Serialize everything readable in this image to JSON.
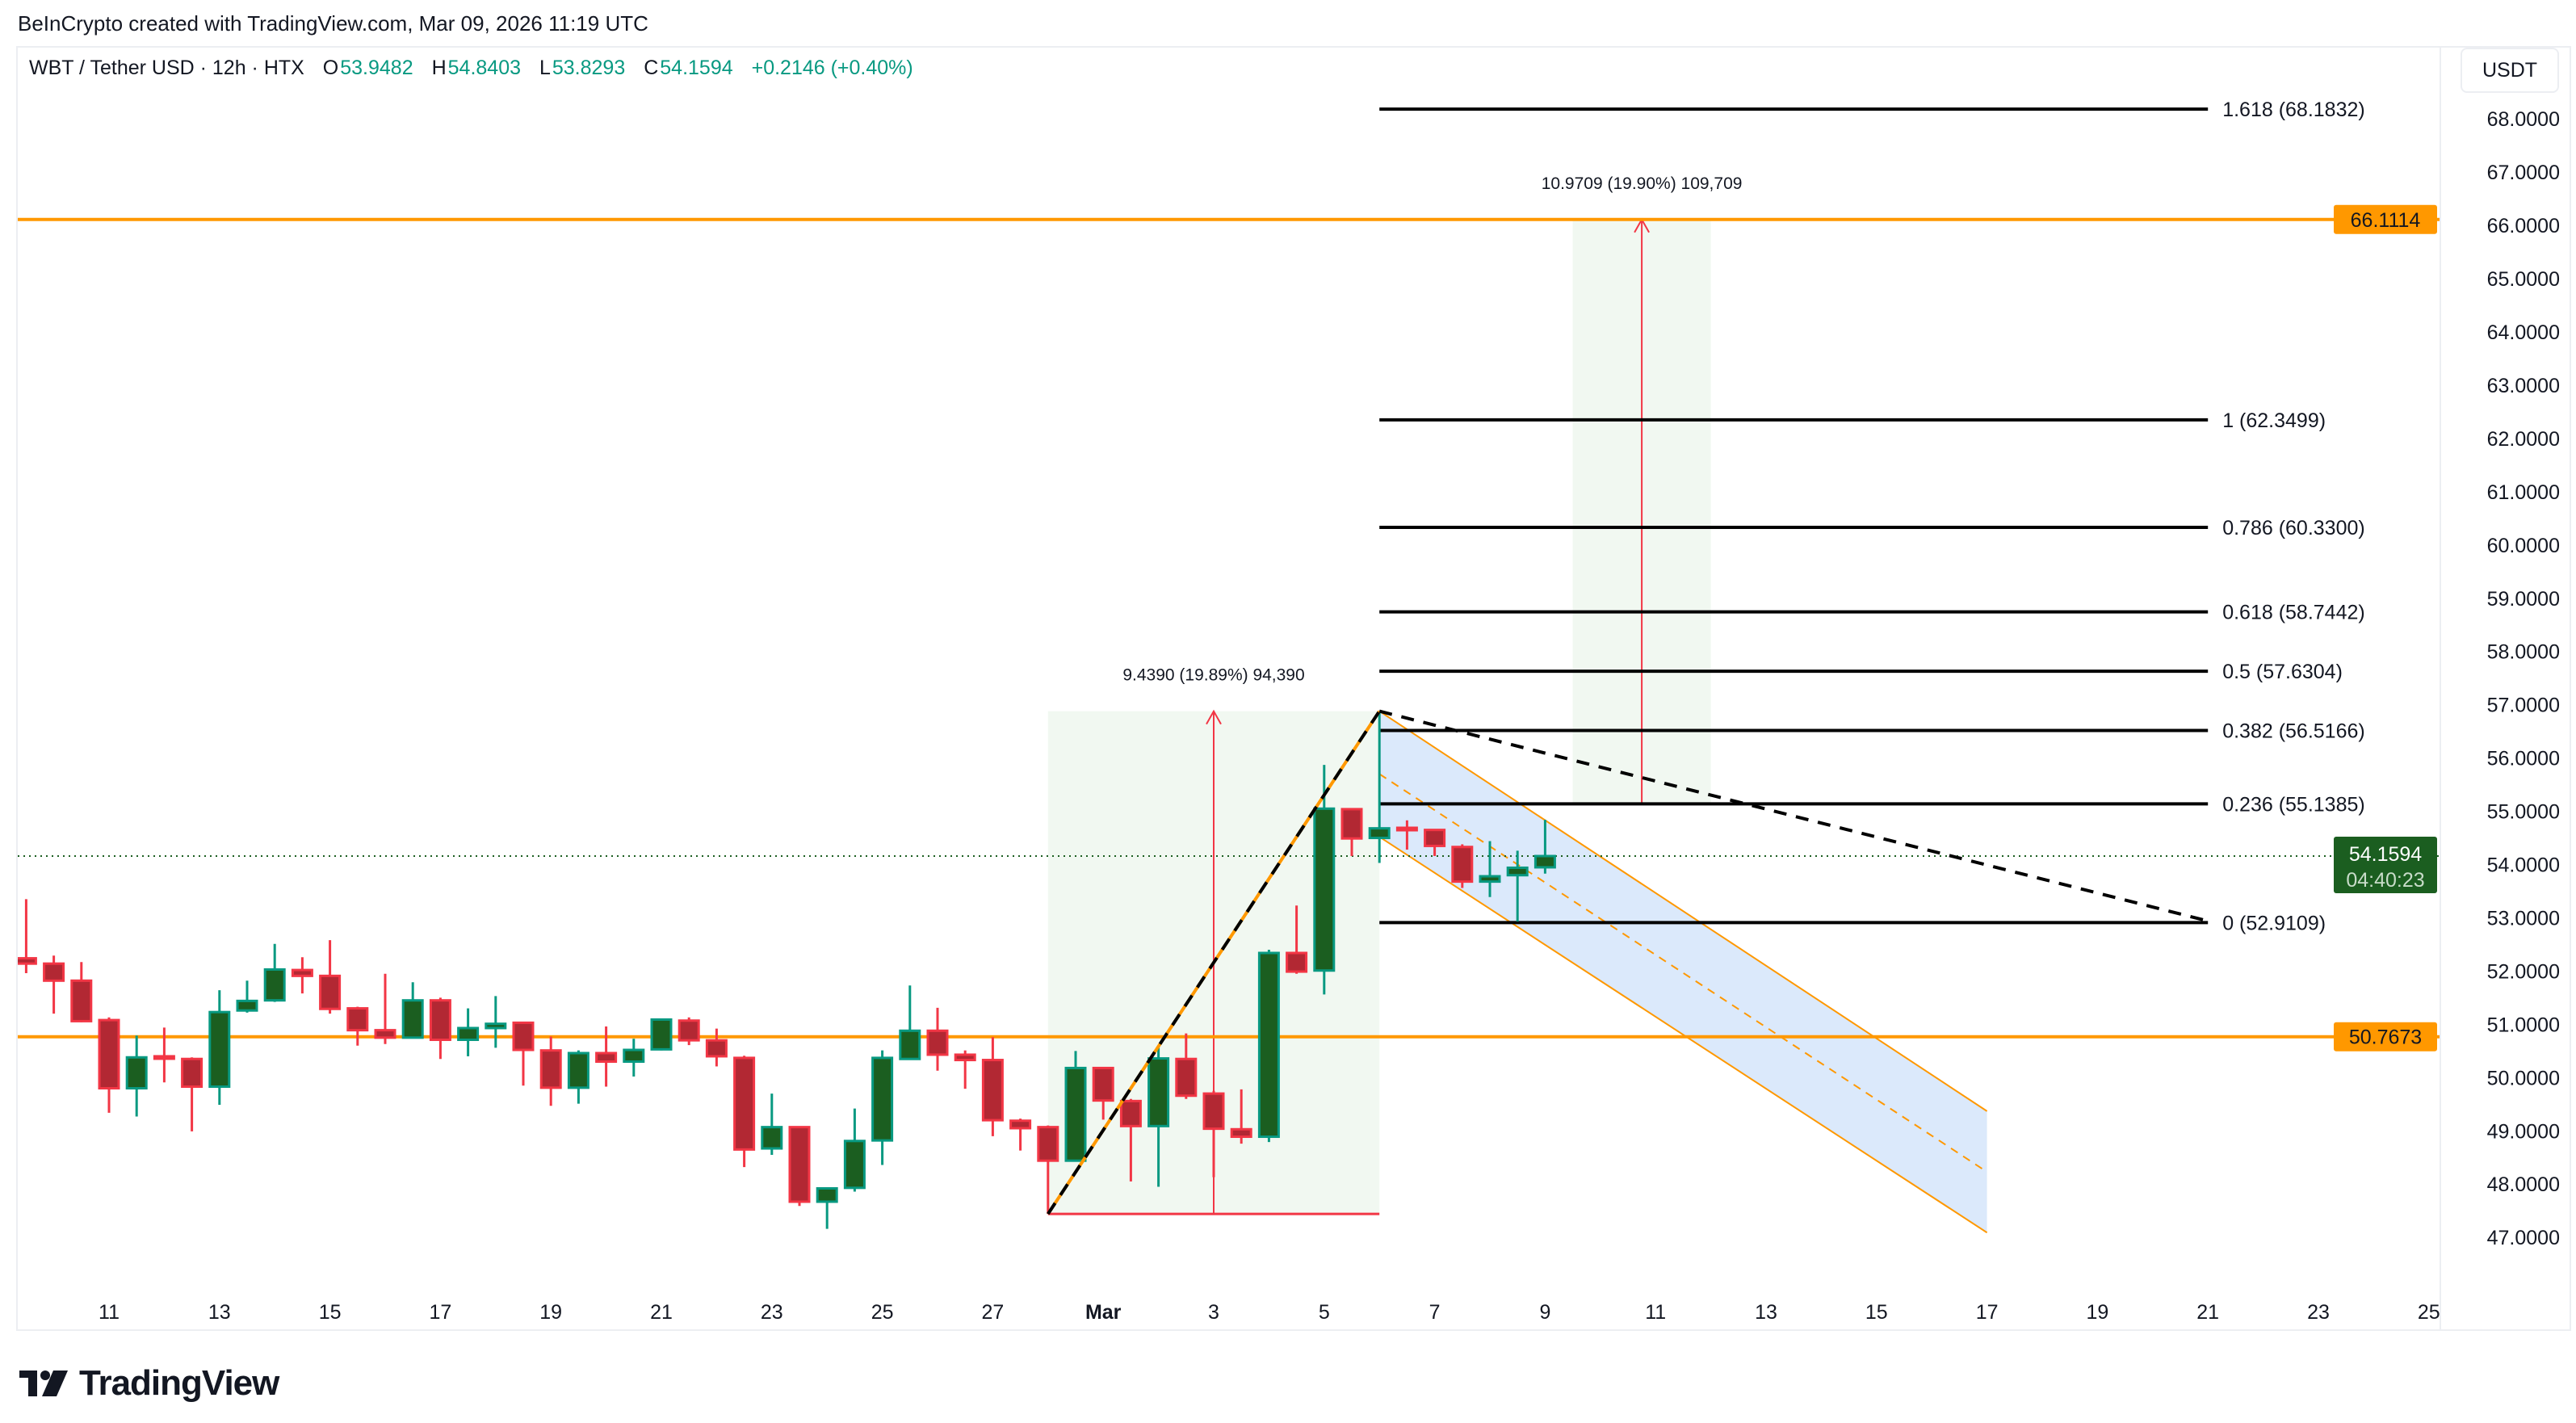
{
  "attribution": "BeInCrypto created with TradingView.com, Mar 09, 2026 11:19 UTC",
  "legend": {
    "symbol": "WBT / Tether USD · 12h · HTX",
    "o_label": "O",
    "o": "53.9482",
    "h_label": "H",
    "h": "54.8403",
    "l_label": "L",
    "l": "53.8293",
    "c_label": "C",
    "c": "54.1594",
    "change": "+0.2146 (+0.40%)"
  },
  "currency_button": "USDT",
  "logo": {
    "text": "TradingView",
    "icon": "tradingview-logo-icon"
  },
  "colors": {
    "up_body": "#1b5e20",
    "up_border": "#089981",
    "down_body": "#b22833",
    "down_border": "#f23645",
    "level": "#ff9800",
    "channel_fill": "#dbe9fb",
    "measure_fill": "#f1f8f1",
    "price_tag": "#1b5e20"
  },
  "chart_data": {
    "type": "candlestick",
    "interval": "12h",
    "grid": false,
    "y_ticks": [
      "47.0000",
      "48.0000",
      "49.0000",
      "50.0000",
      "51.0000",
      "52.0000",
      "53.0000",
      "54.0000",
      "55.0000",
      "56.0000",
      "57.0000",
      "58.0000",
      "59.0000",
      "60.0000",
      "61.0000",
      "62.0000",
      "63.0000",
      "64.0000",
      "65.0000",
      "66.0000",
      "67.0000",
      "68.0000"
    ],
    "ylim": [
      46.5,
      68.5
    ],
    "x_ticks": [
      {
        "label": "11",
        "date": "2026-02-11"
      },
      {
        "label": "13",
        "date": "2026-02-13"
      },
      {
        "label": "15",
        "date": "2026-02-15"
      },
      {
        "label": "17",
        "date": "2026-02-17"
      },
      {
        "label": "19",
        "date": "2026-02-19"
      },
      {
        "label": "21",
        "date": "2026-02-21"
      },
      {
        "label": "23",
        "date": "2026-02-23"
      },
      {
        "label": "25",
        "date": "2026-02-25"
      },
      {
        "label": "27",
        "date": "2026-02-27"
      },
      {
        "label": "Mar",
        "date": "2026-03-01"
      },
      {
        "label": "3",
        "date": "2026-03-03"
      },
      {
        "label": "5",
        "date": "2026-03-05"
      },
      {
        "label": "7",
        "date": "2026-03-07"
      },
      {
        "label": "9",
        "date": "2026-03-09"
      },
      {
        "label": "11",
        "date": "2026-03-11"
      },
      {
        "label": "13",
        "date": "2026-03-13"
      },
      {
        "label": "15",
        "date": "2026-03-15"
      },
      {
        "label": "17",
        "date": "2026-03-17"
      },
      {
        "label": "19",
        "date": "2026-03-19"
      },
      {
        "label": "21",
        "date": "2026-03-21"
      },
      {
        "label": "23",
        "date": "2026-03-23"
      },
      {
        "label": "25",
        "date": "2026-03-25"
      }
    ],
    "candles_columns": [
      "time",
      "open",
      "high",
      "low",
      "close"
    ],
    "candles": [
      [
        "2026-02-09T12:00",
        52.24,
        53.35,
        51.96,
        52.14
      ],
      [
        "2026-02-10T00:00",
        52.14,
        52.29,
        51.2,
        51.82
      ],
      [
        "2026-02-10T12:00",
        51.82,
        52.17,
        51.04,
        51.06
      ],
      [
        "2026-02-11T00:00",
        51.08,
        51.13,
        49.34,
        49.8
      ],
      [
        "2026-02-11T12:00",
        49.8,
        50.79,
        49.27,
        50.38
      ],
      [
        "2026-02-12T00:00",
        50.4,
        50.94,
        49.91,
        50.38
      ],
      [
        "2026-02-12T12:00",
        50.35,
        50.38,
        48.99,
        49.83
      ],
      [
        "2026-02-13T00:00",
        49.83,
        51.64,
        49.49,
        51.23
      ],
      [
        "2026-02-13T12:00",
        51.26,
        51.82,
        51.22,
        51.44
      ],
      [
        "2026-02-14T00:00",
        51.45,
        52.51,
        51.42,
        52.03
      ],
      [
        "2026-02-14T12:00",
        52.02,
        52.26,
        51.58,
        51.91
      ],
      [
        "2026-02-15T00:00",
        51.91,
        52.58,
        51.2,
        51.29
      ],
      [
        "2026-02-15T12:00",
        51.3,
        51.33,
        50.6,
        50.89
      ],
      [
        "2026-02-16T00:00",
        50.89,
        51.95,
        50.63,
        50.75
      ],
      [
        "2026-02-16T12:00",
        50.75,
        51.79,
        50.75,
        51.45
      ],
      [
        "2026-02-17T00:00",
        51.45,
        51.5,
        50.35,
        50.71
      ],
      [
        "2026-02-17T12:00",
        50.71,
        51.3,
        50.4,
        50.93
      ],
      [
        "2026-02-18T00:00",
        50.93,
        51.53,
        50.56,
        51.01
      ],
      [
        "2026-02-18T12:00",
        51.03,
        51.03,
        49.85,
        50.52
      ],
      [
        "2026-02-19T00:00",
        50.51,
        50.77,
        49.47,
        49.81
      ],
      [
        "2026-02-19T12:00",
        49.81,
        50.51,
        49.51,
        50.46
      ],
      [
        "2026-02-20T00:00",
        50.46,
        50.96,
        49.83,
        50.3
      ],
      [
        "2026-02-20T12:00",
        50.3,
        50.73,
        50.02,
        50.52
      ],
      [
        "2026-02-21T00:00",
        50.53,
        51.11,
        50.51,
        51.09
      ],
      [
        "2026-02-21T12:00",
        51.07,
        51.13,
        50.61,
        50.7
      ],
      [
        "2026-02-22T00:00",
        50.7,
        50.92,
        50.21,
        50.4
      ],
      [
        "2026-02-22T12:00",
        50.37,
        50.41,
        48.32,
        48.65
      ],
      [
        "2026-02-23T00:00",
        48.67,
        49.7,
        48.55,
        49.07
      ],
      [
        "2026-02-23T12:00",
        49.07,
        49.07,
        47.59,
        47.67
      ],
      [
        "2026-02-24T00:00",
        47.67,
        47.94,
        47.16,
        47.92
      ],
      [
        "2026-02-24T12:00",
        47.93,
        49.42,
        47.86,
        48.81
      ],
      [
        "2026-02-25T00:00",
        48.82,
        50.51,
        48.36,
        50.37
      ],
      [
        "2026-02-25T12:00",
        50.35,
        51.73,
        50.34,
        50.88
      ],
      [
        "2026-02-26T00:00",
        50.88,
        51.31,
        50.13,
        50.43
      ],
      [
        "2026-02-26T12:00",
        50.43,
        50.51,
        49.79,
        50.33
      ],
      [
        "2026-02-27T00:00",
        50.33,
        50.76,
        48.9,
        49.2
      ],
      [
        "2026-02-27T12:00",
        49.19,
        49.23,
        48.63,
        49.05
      ],
      [
        "2026-02-28T00:00",
        49.07,
        49.1,
        47.44,
        48.44
      ],
      [
        "2026-02-28T12:00",
        48.44,
        50.5,
        48.43,
        50.18
      ],
      [
        "2026-03-01T00:00",
        50.18,
        50.2,
        49.21,
        49.57
      ],
      [
        "2026-03-01T12:00",
        49.56,
        49.6,
        48.05,
        49.09
      ],
      [
        "2026-03-02T00:00",
        49.09,
        50.59,
        47.95,
        50.36
      ],
      [
        "2026-03-02T12:00",
        50.35,
        50.83,
        49.6,
        49.66
      ],
      [
        "2026-03-03T00:00",
        49.7,
        49.75,
        48.13,
        49.04
      ],
      [
        "2026-03-03T12:00",
        49.03,
        49.78,
        48.76,
        48.89
      ],
      [
        "2026-03-04T00:00",
        48.89,
        52.4,
        48.79,
        52.34
      ],
      [
        "2026-03-04T12:00",
        52.34,
        53.23,
        51.95,
        51.99
      ],
      [
        "2026-03-05T00:00",
        52.01,
        55.87,
        51.56,
        55.05
      ],
      [
        "2026-03-05T12:00",
        55.04,
        55.05,
        54.16,
        54.49
      ],
      [
        "2026-03-06T00:00",
        54.5,
        56.88,
        54.03,
        54.68
      ],
      [
        "2026-03-06T12:00",
        54.69,
        54.83,
        54.28,
        54.65
      ],
      [
        "2026-03-07T00:00",
        54.65,
        54.65,
        54.16,
        54.35
      ],
      [
        "2026-03-07T12:00",
        54.33,
        54.38,
        53.56,
        53.68
      ],
      [
        "2026-03-08T00:00",
        53.68,
        54.44,
        53.39,
        53.78
      ],
      [
        "2026-03-08T12:00",
        53.8,
        54.26,
        52.93,
        53.94
      ],
      [
        "2026-03-09T00:00",
        53.9482,
        54.8403,
        53.8293,
        54.1594
      ]
    ],
    "horizontal_levels": [
      {
        "price": 66.1114,
        "label": "66.1114",
        "color": "#ff9800"
      },
      {
        "price": 50.7673,
        "label": "50.7673",
        "color": "#ff9800"
      }
    ],
    "last_price": {
      "price": 54.1594,
      "label": "54.1594",
      "countdown": "04:40:23"
    },
    "fibonacci": {
      "start": "2026-03-06T00:00",
      "end": "2026-03-21T00:00",
      "levels": [
        {
          "ratio": "1.618",
          "price": 68.1832,
          "label": "1.618 (68.1832)"
        },
        {
          "ratio": "1",
          "price": 62.3499,
          "label": "1 (62.3499)"
        },
        {
          "ratio": "0.786",
          "price": 60.33,
          "label": "0.786 (60.3300)"
        },
        {
          "ratio": "0.618",
          "price": 58.7442,
          "label": "0.618 (58.7442)"
        },
        {
          "ratio": "0.5",
          "price": 57.6304,
          "label": "0.5 (57.6304)"
        },
        {
          "ratio": "0.382",
          "price": 56.5166,
          "label": "0.382 (56.5166)"
        },
        {
          "ratio": "0.236",
          "price": 55.1385,
          "label": "0.236 (55.1385)"
        },
        {
          "ratio": "0",
          "price": 52.9109,
          "label": "0 (52.9109)"
        }
      ]
    },
    "measurements": [
      {
        "start": "2026-02-28T00:00",
        "end": "2026-03-06T00:00",
        "from": 47.44,
        "to": 56.879,
        "label": "9.4390 (19.89%) 94,390"
      },
      {
        "start": "2026-03-09T12:00",
        "end": "2026-03-12T00:00",
        "from": 55.1405,
        "to": 66.1114,
        "label": "10.9709 (19.90%) 109,709"
      }
    ],
    "trendlines": [
      {
        "from": [
          "2026-02-28T00:00",
          47.44
        ],
        "to": [
          "2026-03-06T00:00",
          56.88
        ],
        "style": "dashed-black-on-orange"
      },
      {
        "from": [
          "2026-03-06T00:00",
          56.88
        ],
        "to": [
          "2026-03-21T00:00",
          52.94
        ],
        "style": "dashed-black"
      }
    ],
    "channel": {
      "start": "2026-03-06T00:00",
      "end": "2026-03-17T00:00",
      "upper": [
        56.88,
        49.37
      ],
      "lower": [
        54.52,
        47.09
      ],
      "middle": [
        55.7,
        48.23
      ]
    }
  }
}
